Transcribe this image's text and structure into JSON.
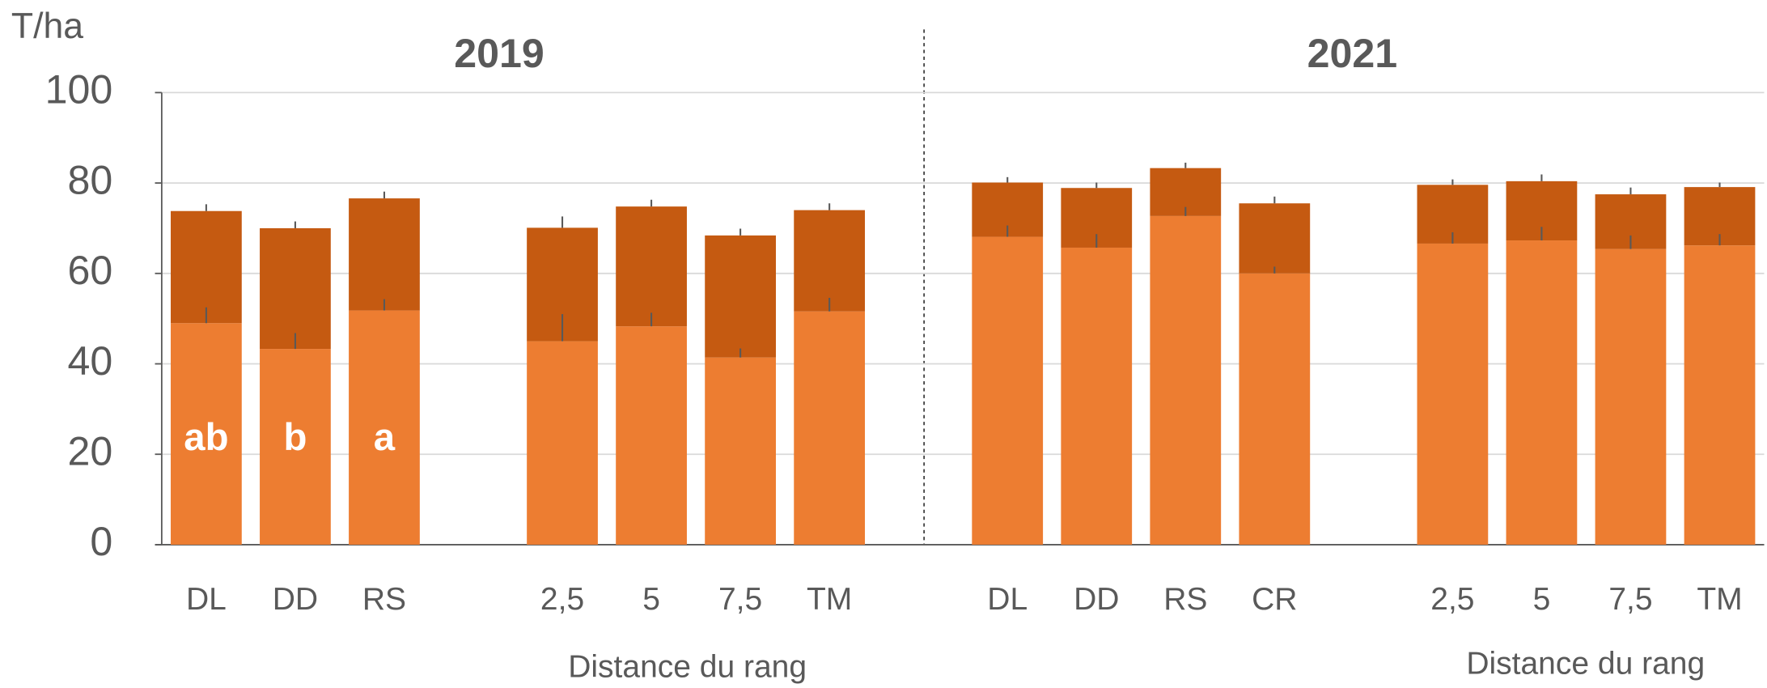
{
  "chart_data": {
    "type": "stacked_bar",
    "y_label": "T/ha",
    "groups": [
      "2019",
      "2021"
    ],
    "x_labels": [
      "Distance du rang",
      "Distance du rang"
    ],
    "categories": [
      "DL",
      "DD",
      "RS",
      null,
      "2,5",
      "5",
      "7,5",
      "TM",
      null,
      "DL",
      "DD",
      "RS",
      "CR",
      null,
      "2,5",
      "5",
      "7,5",
      "TM"
    ],
    "series": [
      {
        "color": "#ed7d31",
        "values": [
          49,
          43.3,
          51.8,
          null,
          45,
          48.3,
          41.4,
          51.6,
          null,
          68.1,
          65.7,
          72.7,
          60,
          null,
          66.6,
          67.3,
          65.4,
          66.2
        ],
        "errors": [
          3.5,
          3.5,
          2.5,
          null,
          6,
          3,
          2,
          3,
          null,
          2.5,
          3,
          2,
          1.5,
          null,
          2.5,
          3,
          3,
          2.5
        ]
      },
      {
        "color": "#c55a11",
        "values": [
          24.8,
          26.7,
          24.8,
          null,
          25.1,
          26.5,
          27,
          22.4,
          null,
          12,
          13.2,
          10.6,
          15.5,
          null,
          13,
          13.1,
          12.1,
          12.9
        ],
        "errors": [
          1.5,
          1.5,
          1.5,
          null,
          2.5,
          1.5,
          1.5,
          1.5,
          null,
          1.2,
          1.2,
          1.2,
          1.5,
          null,
          1.2,
          1.5,
          1.5,
          1
        ]
      }
    ],
    "letters": [
      "ab",
      "b",
      "a"
    ],
    "ylim": [
      0,
      100
    ],
    "yticks": [
      0,
      20,
      40,
      60,
      80,
      100
    ],
    "grid": true
  }
}
